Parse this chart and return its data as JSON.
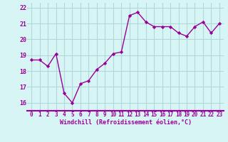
{
  "x": [
    0,
    1,
    2,
    3,
    4,
    5,
    6,
    7,
    8,
    9,
    10,
    11,
    12,
    13,
    14,
    15,
    16,
    17,
    18,
    19,
    20,
    21,
    22,
    23
  ],
  "y": [
    18.7,
    18.7,
    18.3,
    19.1,
    16.6,
    16.0,
    17.2,
    17.4,
    18.1,
    18.5,
    19.1,
    19.2,
    21.5,
    21.7,
    21.1,
    20.8,
    20.8,
    20.8,
    20.4,
    20.2,
    20.8,
    21.1,
    20.4,
    21.0
  ],
  "line_color": "#990099",
  "marker": "D",
  "marker_size": 2.2,
  "bg_color": "#d8f5f5",
  "grid_color": "#b0d8d8",
  "xlabel": "Windchill (Refroidissement éolien,°C)",
  "xlabel_color": "#990099",
  "tick_color": "#990099",
  "axis_line_color": "#990099",
  "ylim": [
    15.5,
    22.3
  ],
  "xlim": [
    -0.5,
    23.5
  ],
  "yticks": [
    16,
    17,
    18,
    19,
    20,
    21,
    22
  ],
  "xticks": [
    0,
    1,
    2,
    3,
    4,
    5,
    6,
    7,
    8,
    9,
    10,
    11,
    12,
    13,
    14,
    15,
    16,
    17,
    18,
    19,
    20,
    21,
    22,
    23
  ],
  "xlabel_fontsize": 6.0,
  "tick_fontsize": 5.5,
  "ytick_fontsize": 6.0,
  "linewidth": 1.0
}
